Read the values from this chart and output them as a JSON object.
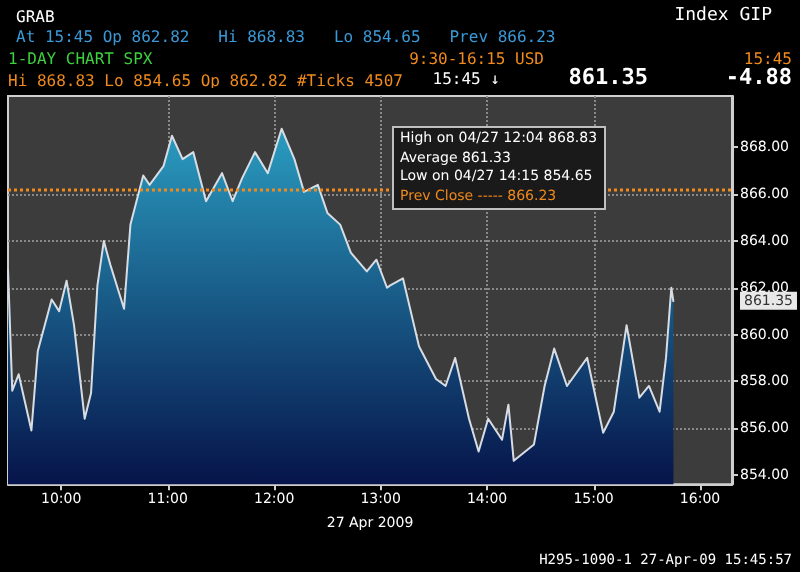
{
  "chart_data": {
    "type": "area",
    "title": "1-DAY CHART SPX",
    "xlabel": "27 Apr 2009",
    "x": [
      9.5,
      9.54,
      9.6,
      9.72,
      9.78,
      9.91,
      9.98,
      10.05,
      10.12,
      10.22,
      10.28,
      10.34,
      10.4,
      10.46,
      10.59,
      10.65,
      10.77,
      10.83,
      10.96,
      11.04,
      11.14,
      11.24,
      11.36,
      11.51,
      11.61,
      11.7,
      11.82,
      11.94,
      12.07,
      12.19,
      12.28,
      12.41,
      12.5,
      12.62,
      12.72,
      12.87,
      12.96,
      13.06,
      13.09,
      13.21,
      13.36,
      13.52,
      13.61,
      13.7,
      13.83,
      13.92,
      14.01,
      14.14,
      14.2,
      14.25,
      14.44,
      14.54,
      14.63,
      14.75,
      14.94,
      15.09,
      15.19,
      15.31,
      15.43,
      15.52,
      15.62,
      15.68,
      15.73,
      15.75
    ],
    "series": [
      {
        "color": "#2a9cc0",
        "values": [
          862.8,
          857.6,
          858.3,
          855.9,
          859.3,
          861.5,
          861.0,
          862.3,
          860.4,
          856.4,
          857.5,
          862.1,
          864.0,
          863.0,
          861.1,
          864.7,
          866.8,
          866.4,
          867.2,
          868.5,
          867.5,
          867.8,
          865.7,
          866.9,
          865.7,
          866.7,
          867.8,
          866.9,
          868.8,
          867.5,
          866.1,
          866.4,
          865.2,
          864.7,
          863.5,
          862.7,
          863.2,
          862.0,
          862.1,
          862.4,
          859.5,
          858.1,
          857.8,
          859.0,
          856.4,
          855.0,
          856.4,
          855.5,
          857.0,
          854.6,
          855.3,
          857.8,
          859.4,
          857.8,
          859.0,
          855.8,
          856.7,
          860.4,
          857.3,
          857.8,
          856.7,
          859.0,
          862.0,
          861.4
        ]
      }
    ],
    "xlim": [
      9.5,
      16.3
    ],
    "xticks": [
      {
        "value": 10,
        "label": "10:00"
      },
      {
        "value": 11,
        "label": "11:00"
      },
      {
        "value": 12,
        "label": "12:00"
      },
      {
        "value": 13,
        "label": "13:00"
      },
      {
        "value": 14,
        "label": "14:00"
      },
      {
        "value": 15,
        "label": "15:00"
      },
      {
        "value": 16,
        "label": "16:00"
      }
    ],
    "ylim": [
      853.6,
      870.2
    ],
    "yticks": [
      {
        "value": 854,
        "label": "854.00"
      },
      {
        "value": 856,
        "label": "856.00"
      },
      {
        "value": 858,
        "label": "858.00"
      },
      {
        "value": 860,
        "label": "860.00"
      },
      {
        "value": 862,
        "label": "862.00"
      },
      {
        "value": 864,
        "label": "864.00"
      },
      {
        "value": 866,
        "label": "866.00"
      },
      {
        "value": 868,
        "label": "868.00"
      }
    ],
    "grid": true,
    "marker": "none",
    "ref_lines": [
      {
        "axis": "y",
        "value": 866.23,
        "label": "Prev Close ----- 866.23",
        "color": "#f08a1c",
        "line_style": "dotted"
      }
    ],
    "annotations": [
      "GRAB",
      "Index GIP",
      "At 15:45 Op 862.82   Hi 868.83   Lo 854.65   Prev 866.23",
      "9:30-16:15 USD",
      "15:45",
      "Hi 868.83 Lo 854.65 Op 862.82 #Ticks 4507",
      "15:45 ↓",
      "861.35",
      "-4.88",
      "High on 04/27 12:04 868.83",
      "Average 861.33",
      "Low on 04/27 14:15 854.65",
      "861.35",
      "H295-1090-1 27-Apr-09 15:45:57"
    ]
  }
}
